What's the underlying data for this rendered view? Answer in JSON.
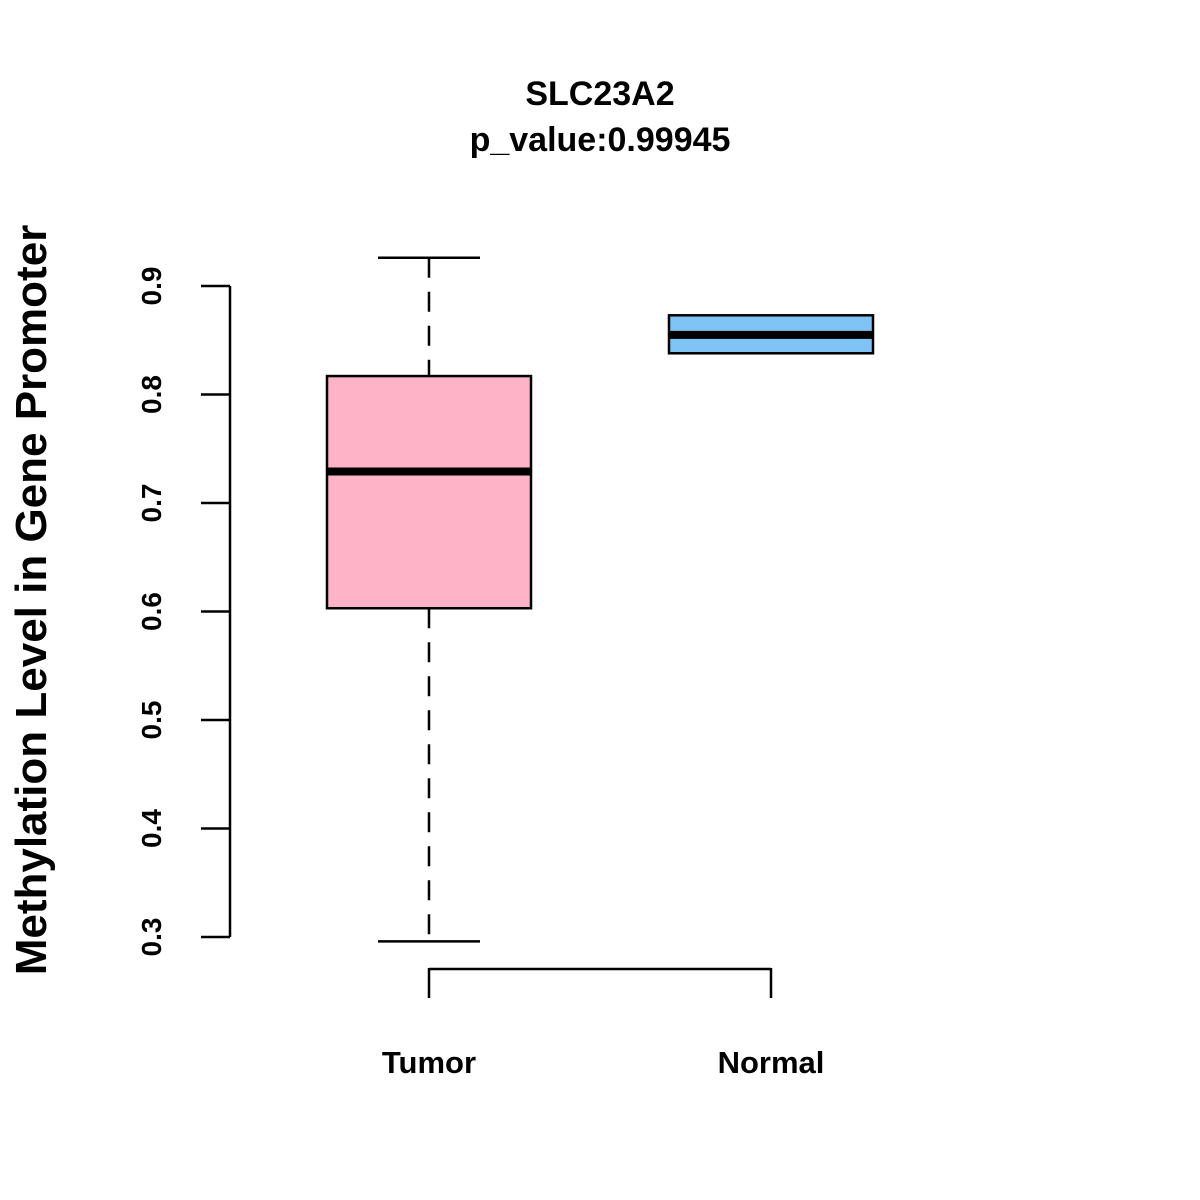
{
  "chart_data": {
    "type": "boxplot",
    "title": "SLC23A2",
    "subtitle": "p_value:0.99945",
    "ylabel": "Methylation Level in Gene Promoter",
    "xlabel": "",
    "ylim": [
      0.3,
      0.9
    ],
    "yticks": [
      0.3,
      0.4,
      0.5,
      0.6,
      0.7,
      0.8,
      0.9
    ],
    "ytick_labels": [
      "0.3",
      "0.4",
      "0.5",
      "0.6",
      "0.7",
      "0.8",
      "0.9"
    ],
    "groups": [
      {
        "name": "Tumor",
        "color": "#FFB3C6",
        "whisker_low": 0.296,
        "q1": 0.603,
        "median": 0.729,
        "q3": 0.817,
        "whisker_high": 0.926
      },
      {
        "name": "Normal",
        "color": "#80C4F5",
        "whisker_low": 0.838,
        "q1": 0.838,
        "median": 0.855,
        "q3": 0.873,
        "whisker_high": 0.873
      }
    ]
  }
}
